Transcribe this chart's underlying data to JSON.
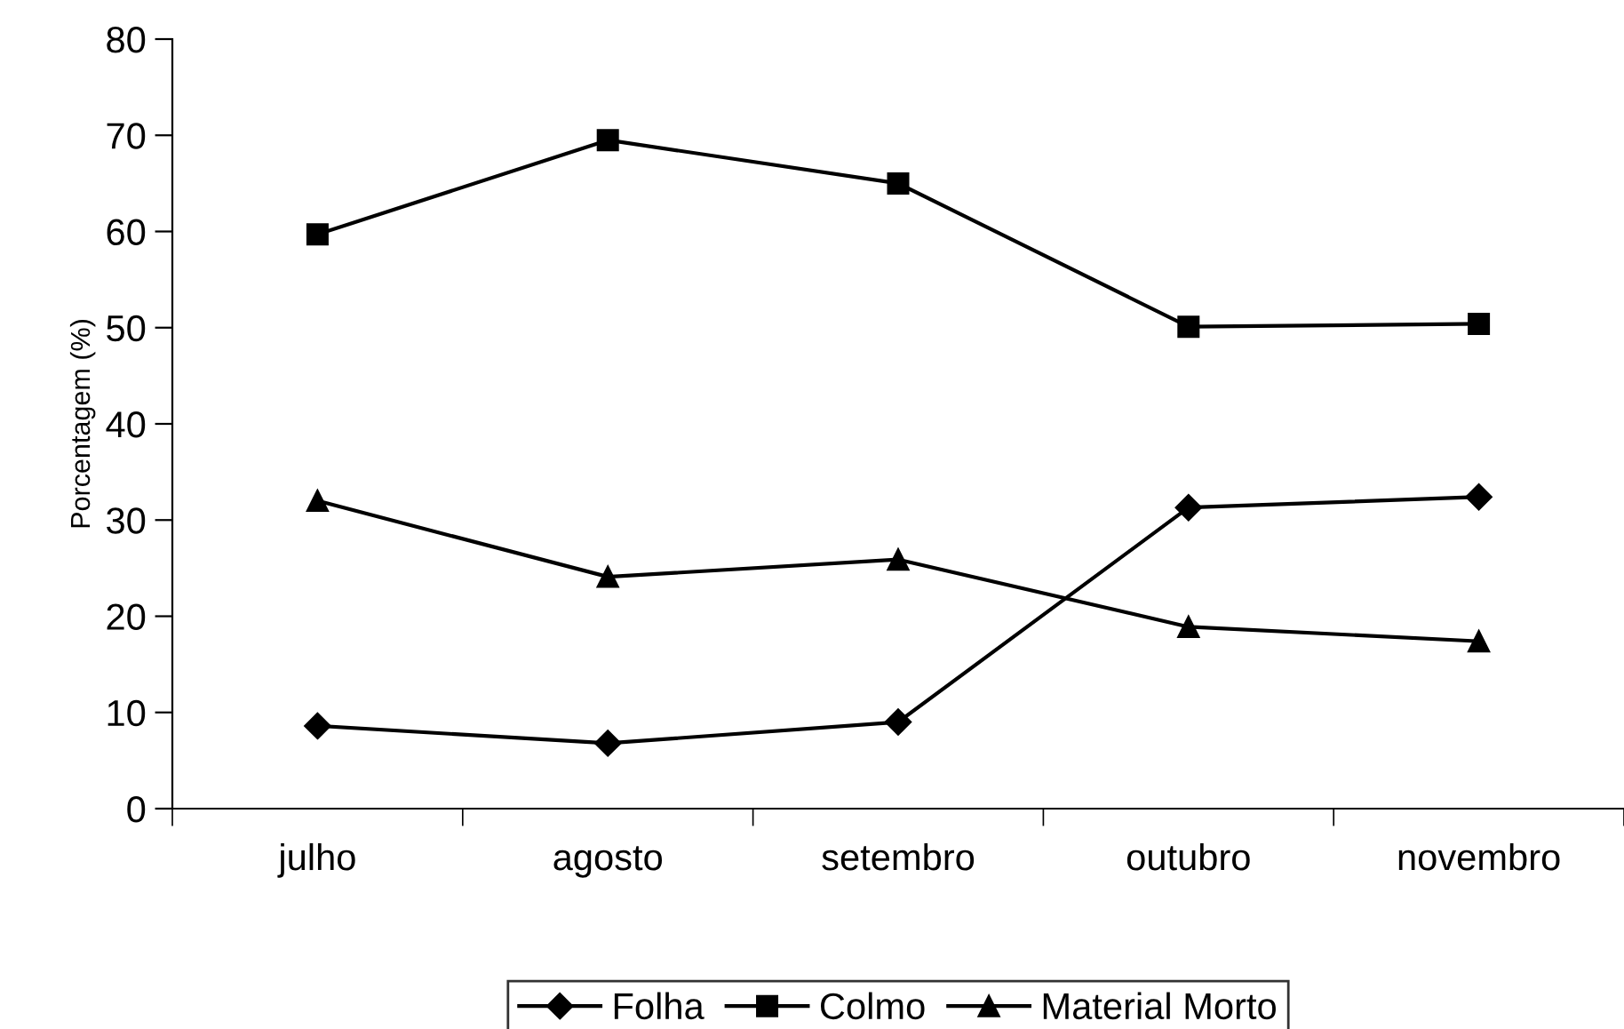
{
  "chart_data": {
    "type": "line",
    "ylabel": "Porcentagem (%)",
    "categories": [
      "julho",
      "agosto",
      "setembro",
      "outubro",
      "novembro"
    ],
    "series": [
      {
        "name": "Folha",
        "color": "#000000",
        "marker": "diamond",
        "values": [
          8.6,
          6.8,
          9.0,
          31.3,
          32.4
        ]
      },
      {
        "name": "Colmo",
        "color": "#000000",
        "marker": "square",
        "values": [
          59.7,
          69.5,
          65.0,
          50.1,
          50.4
        ]
      },
      {
        "name": "Material Morto",
        "color": "#000000",
        "marker": "triangle",
        "values": [
          32.0,
          24.1,
          25.9,
          18.9,
          17.4
        ]
      }
    ],
    "ylim": [
      0,
      80
    ],
    "yticks": [
      0,
      10,
      20,
      30,
      40,
      50,
      60,
      70,
      80
    ],
    "grid": false,
    "legend": "bottom",
    "line_style": "solid"
  }
}
